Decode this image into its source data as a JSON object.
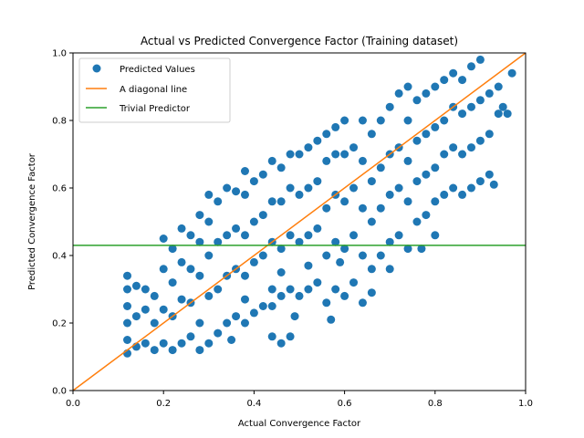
{
  "chart_data": {
    "type": "scatter",
    "title": "Actual vs Predicted Convergence Factor (Training dataset)",
    "xlabel": "Actual Convergence Factor",
    "ylabel": "Predicted Convergence Factor",
    "xlim": [
      0.0,
      1.0
    ],
    "ylim": [
      0.0,
      1.0
    ],
    "xticks": [
      "0.0",
      "0.2",
      "0.4",
      "0.6",
      "0.8",
      "1.0"
    ],
    "yticks": [
      "0.0",
      "0.2",
      "0.4",
      "0.6",
      "0.8",
      "1.0"
    ],
    "grid": false,
    "legend_position": "top-left",
    "series": [
      {
        "name": "Predicted Values",
        "kind": "scatter",
        "color": "#1f77b4",
        "points": [
          [
            0.12,
            0.11
          ],
          [
            0.12,
            0.15
          ],
          [
            0.12,
            0.2
          ],
          [
            0.12,
            0.25
          ],
          [
            0.12,
            0.3
          ],
          [
            0.12,
            0.34
          ],
          [
            0.14,
            0.13
          ],
          [
            0.14,
            0.22
          ],
          [
            0.14,
            0.31
          ],
          [
            0.16,
            0.14
          ],
          [
            0.16,
            0.24
          ],
          [
            0.16,
            0.3
          ],
          [
            0.18,
            0.12
          ],
          [
            0.18,
            0.2
          ],
          [
            0.18,
            0.28
          ],
          [
            0.2,
            0.14
          ],
          [
            0.2,
            0.24
          ],
          [
            0.2,
            0.36
          ],
          [
            0.2,
            0.45
          ],
          [
            0.22,
            0.12
          ],
          [
            0.22,
            0.22
          ],
          [
            0.22,
            0.32
          ],
          [
            0.22,
            0.42
          ],
          [
            0.24,
            0.14
          ],
          [
            0.24,
            0.27
          ],
          [
            0.24,
            0.38
          ],
          [
            0.24,
            0.48
          ],
          [
            0.26,
            0.16
          ],
          [
            0.26,
            0.26
          ],
          [
            0.26,
            0.36
          ],
          [
            0.26,
            0.46
          ],
          [
            0.28,
            0.12
          ],
          [
            0.28,
            0.2
          ],
          [
            0.28,
            0.34
          ],
          [
            0.28,
            0.44
          ],
          [
            0.28,
            0.52
          ],
          [
            0.3,
            0.14
          ],
          [
            0.3,
            0.28
          ],
          [
            0.3,
            0.4
          ],
          [
            0.3,
            0.5
          ],
          [
            0.3,
            0.58
          ],
          [
            0.32,
            0.17
          ],
          [
            0.32,
            0.3
          ],
          [
            0.32,
            0.44
          ],
          [
            0.32,
            0.56
          ],
          [
            0.34,
            0.2
          ],
          [
            0.34,
            0.34
          ],
          [
            0.34,
            0.46
          ],
          [
            0.34,
            0.6
          ],
          [
            0.36,
            0.22
          ],
          [
            0.36,
            0.36
          ],
          [
            0.36,
            0.48
          ],
          [
            0.36,
            0.59
          ],
          [
            0.38,
            0.2
          ],
          [
            0.38,
            0.34
          ],
          [
            0.38,
            0.46
          ],
          [
            0.38,
            0.58
          ],
          [
            0.38,
            0.65
          ],
          [
            0.4,
            0.23
          ],
          [
            0.4,
            0.38
          ],
          [
            0.4,
            0.5
          ],
          [
            0.4,
            0.62
          ],
          [
            0.42,
            0.25
          ],
          [
            0.42,
            0.4
          ],
          [
            0.42,
            0.52
          ],
          [
            0.42,
            0.64
          ],
          [
            0.44,
            0.16
          ],
          [
            0.44,
            0.3
          ],
          [
            0.44,
            0.44
          ],
          [
            0.44,
            0.56
          ],
          [
            0.44,
            0.68
          ],
          [
            0.46,
            0.14
          ],
          [
            0.46,
            0.28
          ],
          [
            0.46,
            0.42
          ],
          [
            0.46,
            0.56
          ],
          [
            0.46,
            0.66
          ],
          [
            0.48,
            0.16
          ],
          [
            0.48,
            0.3
          ],
          [
            0.48,
            0.46
          ],
          [
            0.48,
            0.6
          ],
          [
            0.48,
            0.7
          ],
          [
            0.5,
            0.28
          ],
          [
            0.5,
            0.44
          ],
          [
            0.5,
            0.58
          ],
          [
            0.5,
            0.7
          ],
          [
            0.52,
            0.3
          ],
          [
            0.52,
            0.46
          ],
          [
            0.52,
            0.6
          ],
          [
            0.52,
            0.72
          ],
          [
            0.54,
            0.32
          ],
          [
            0.54,
            0.48
          ],
          [
            0.54,
            0.62
          ],
          [
            0.54,
            0.74
          ],
          [
            0.56,
            0.26
          ],
          [
            0.56,
            0.4
          ],
          [
            0.56,
            0.54
          ],
          [
            0.56,
            0.68
          ],
          [
            0.56,
            0.76
          ],
          [
            0.58,
            0.3
          ],
          [
            0.58,
            0.44
          ],
          [
            0.58,
            0.58
          ],
          [
            0.58,
            0.7
          ],
          [
            0.58,
            0.78
          ],
          [
            0.6,
            0.28
          ],
          [
            0.6,
            0.42
          ],
          [
            0.6,
            0.56
          ],
          [
            0.6,
            0.7
          ],
          [
            0.6,
            0.8
          ],
          [
            0.62,
            0.32
          ],
          [
            0.62,
            0.46
          ],
          [
            0.62,
            0.6
          ],
          [
            0.62,
            0.72
          ],
          [
            0.64,
            0.26
          ],
          [
            0.64,
            0.4
          ],
          [
            0.64,
            0.54
          ],
          [
            0.64,
            0.68
          ],
          [
            0.64,
            0.8
          ],
          [
            0.66,
            0.36
          ],
          [
            0.66,
            0.5
          ],
          [
            0.66,
            0.62
          ],
          [
            0.66,
            0.76
          ],
          [
            0.68,
            0.4
          ],
          [
            0.68,
            0.54
          ],
          [
            0.68,
            0.66
          ],
          [
            0.68,
            0.8
          ],
          [
            0.7,
            0.44
          ],
          [
            0.7,
            0.58
          ],
          [
            0.7,
            0.7
          ],
          [
            0.7,
            0.84
          ],
          [
            0.72,
            0.46
          ],
          [
            0.72,
            0.6
          ],
          [
            0.72,
            0.72
          ],
          [
            0.72,
            0.88
          ],
          [
            0.74,
            0.42
          ],
          [
            0.74,
            0.56
          ],
          [
            0.74,
            0.68
          ],
          [
            0.74,
            0.8
          ],
          [
            0.74,
            0.9
          ],
          [
            0.76,
            0.5
          ],
          [
            0.76,
            0.62
          ],
          [
            0.76,
            0.74
          ],
          [
            0.76,
            0.86
          ],
          [
            0.78,
            0.52
          ],
          [
            0.78,
            0.64
          ],
          [
            0.78,
            0.76
          ],
          [
            0.78,
            0.88
          ],
          [
            0.8,
            0.56
          ],
          [
            0.8,
            0.66
          ],
          [
            0.8,
            0.78
          ],
          [
            0.8,
            0.9
          ],
          [
            0.82,
            0.58
          ],
          [
            0.82,
            0.7
          ],
          [
            0.82,
            0.8
          ],
          [
            0.82,
            0.92
          ],
          [
            0.84,
            0.6
          ],
          [
            0.84,
            0.72
          ],
          [
            0.84,
            0.84
          ],
          [
            0.84,
            0.94
          ],
          [
            0.86,
            0.58
          ],
          [
            0.86,
            0.7
          ],
          [
            0.86,
            0.82
          ],
          [
            0.86,
            0.92
          ],
          [
            0.88,
            0.6
          ],
          [
            0.88,
            0.72
          ],
          [
            0.88,
            0.84
          ],
          [
            0.88,
            0.96
          ],
          [
            0.9,
            0.62
          ],
          [
            0.9,
            0.74
          ],
          [
            0.9,
            0.86
          ],
          [
            0.9,
            0.98
          ],
          [
            0.92,
            0.64
          ],
          [
            0.92,
            0.76
          ],
          [
            0.92,
            0.88
          ],
          [
            0.94,
            0.82
          ],
          [
            0.94,
            0.9
          ],
          [
            0.93,
            0.61
          ],
          [
            0.96,
            0.82
          ],
          [
            0.97,
            0.94
          ],
          [
            0.95,
            0.84
          ],
          [
            0.44,
            0.25
          ],
          [
            0.46,
            0.35
          ],
          [
            0.38,
            0.27
          ],
          [
            0.35,
            0.15
          ],
          [
            0.49,
            0.22
          ],
          [
            0.57,
            0.21
          ],
          [
            0.66,
            0.29
          ],
          [
            0.7,
            0.36
          ],
          [
            0.77,
            0.42
          ],
          [
            0.8,
            0.46
          ],
          [
            0.59,
            0.38
          ],
          [
            0.52,
            0.37
          ]
        ]
      },
      {
        "name": "A diagonal line",
        "kind": "line",
        "color": "#ff7f0e",
        "x": [
          0.0,
          1.0
        ],
        "y": [
          0.0,
          1.0
        ]
      },
      {
        "name": "Trivial Predictor",
        "kind": "hline",
        "color": "#2ca02c",
        "y": 0.43
      }
    ]
  }
}
